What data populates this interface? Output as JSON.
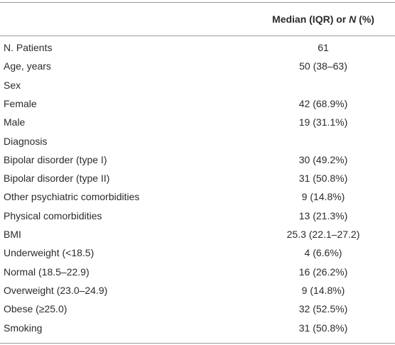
{
  "table": {
    "header": [
      "Median (IQR) or ",
      "N",
      " (%)"
    ],
    "rows": [
      [
        "N. Patients",
        "61"
      ],
      [
        "Age, years",
        "50 (38–63)"
      ],
      [
        "Sex"
      ],
      [
        "Female",
        "42 (68.9%)"
      ],
      [
        "Male",
        "19 (31.1%)"
      ],
      [
        "Diagnosis"
      ],
      [
        "Bipolar disorder (type I)",
        "30 (49.2%)"
      ],
      [
        "Bipolar disorder (type II)",
        "31 (50.8%)"
      ],
      [
        "Other psychiatric comorbidities",
        "9 (14.8%)"
      ],
      [
        "Physical comorbidities",
        "13 (21.3%)"
      ],
      [
        "BMI",
        "25.3 (22.1–27.2)"
      ],
      [
        "Underweight (<18.5)",
        "4 (6.6%)"
      ],
      [
        "Normal (18.5–22.9)",
        "16 (26.2%)"
      ],
      [
        "Overweight (23.0–24.9)",
        "9 (14.8%)"
      ],
      [
        "Obese (≥25.0)",
        "32 (52.5%)"
      ],
      [
        "Smoking",
        "31 (50.8%)"
      ]
    ]
  }
}
